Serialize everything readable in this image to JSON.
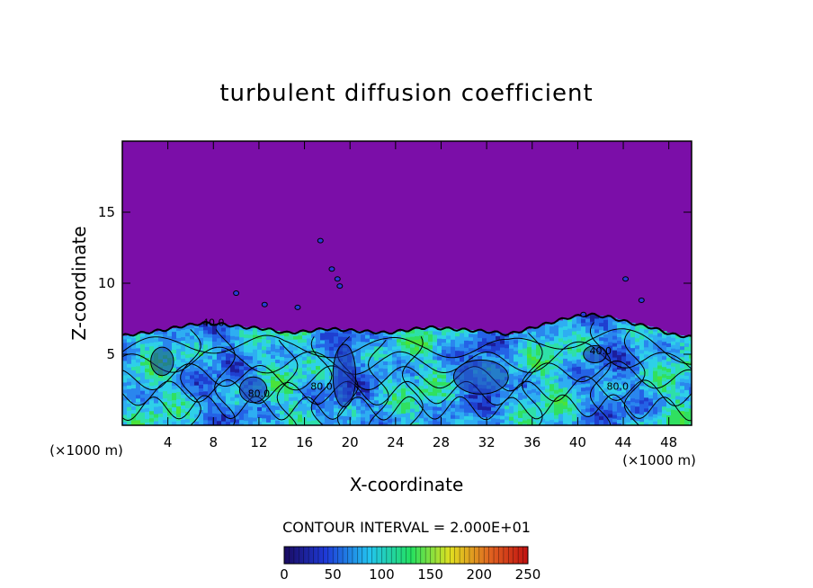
{
  "chart_data": {
    "type": "heatmap",
    "title": "turbulent diffusion coefficient",
    "xlabel": "X-coordinate",
    "ylabel": "Z-coordinate",
    "x_unit": "(×1000 m)",
    "xlim": [
      0,
      50
    ],
    "ylim": [
      0,
      20
    ],
    "x_ticks": [
      4,
      8,
      12,
      16,
      20,
      24,
      28,
      32,
      36,
      40,
      44,
      48
    ],
    "y_ticks": [
      5,
      10,
      15
    ],
    "contour_interval_text": "CONTOUR INTERVAL = 2.000E+01",
    "contour_interval": 20,
    "colorbar": {
      "min": 0,
      "max": 250,
      "ticks": [
        0,
        50,
        100,
        150,
        200,
        250
      ],
      "colors": [
        "#1a0a60",
        "#1e3ad8",
        "#22c4f0",
        "#22e060",
        "#e0e020",
        "#e06020",
        "#c01010"
      ]
    },
    "background_value": 0,
    "background_color": "#7b0ea8",
    "contour_labels": [
      {
        "text": "40.0",
        "x": 8.0,
        "z": 7.0
      },
      {
        "text": "80.0",
        "x": 12.0,
        "z": 2.0
      },
      {
        "text": "80.0",
        "x": 17.5,
        "z": 2.5
      },
      {
        "text": "80.0",
        "x": 43.5,
        "z": 2.5
      },
      {
        "text": "40.0",
        "x": 42.0,
        "z": 5.0
      }
    ],
    "boundary_layer_top_z": [
      6.3,
      6.5,
      6.7,
      7.0,
      7.2,
      7.1,
      6.9,
      6.8,
      6.5,
      6.6,
      6.8,
      6.7,
      6.6,
      6.5,
      6.7,
      6.9,
      6.8,
      6.7,
      6.6,
      6.4,
      6.8,
      7.2,
      7.6,
      7.8,
      7.6,
      7.2,
      6.9,
      6.4,
      6.2
    ]
  }
}
